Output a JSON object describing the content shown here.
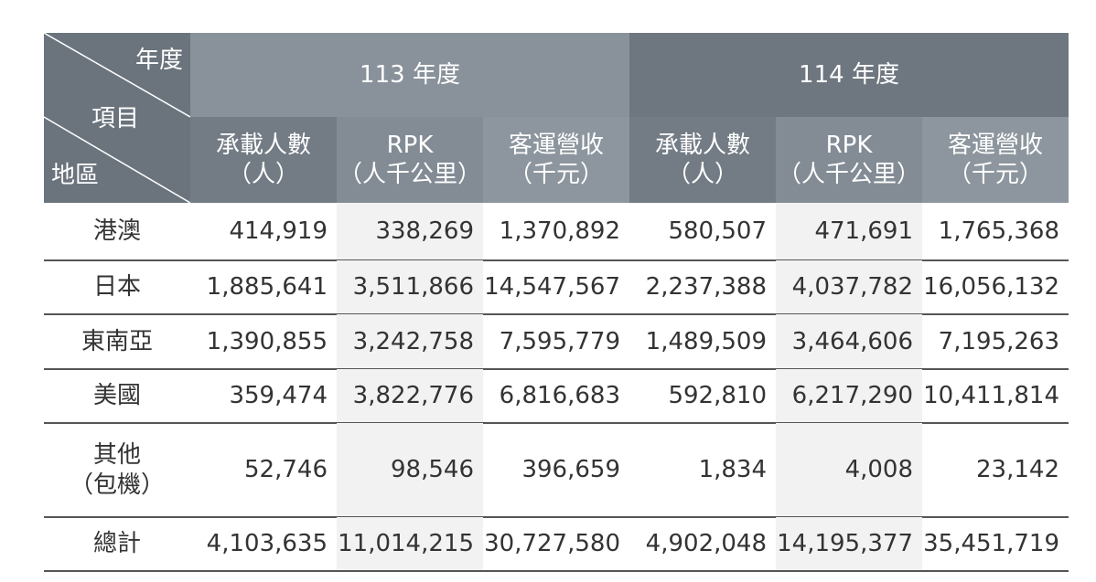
{
  "corner": {
    "top_label": "年度",
    "middle_label": "項目",
    "bottom_label": "地區"
  },
  "columns": [
    {
      "year": "113 年度",
      "metrics": [
        {
          "name": "承載人數",
          "unit": "（人）"
        },
        {
          "name": "RPK",
          "unit": "（人千公里）"
        },
        {
          "name": "客運營收",
          "unit": "（千元）"
        }
      ]
    },
    {
      "year": "114 年度",
      "metrics": [
        {
          "name": "承載人數",
          "unit": "（人）"
        },
        {
          "name": "RPK",
          "unit": "（人千公里）"
        },
        {
          "name": "客運營收",
          "unit": "（千元）"
        }
      ]
    }
  ],
  "rows": [
    {
      "region": [
        "港澳"
      ],
      "values": [
        "414,919",
        "338,269",
        "1,370,892",
        "580,507",
        "471,691",
        "1,765,368"
      ]
    },
    {
      "region": [
        "日本"
      ],
      "values": [
        "1,885,641",
        "3,511,866",
        "14,547,567",
        "2,237,388",
        "4,037,782",
        "16,056,132"
      ]
    },
    {
      "region": [
        "東南亞"
      ],
      "values": [
        "1,390,855",
        "3,242,758",
        "7,595,779",
        "1,489,509",
        "3,464,606",
        "7,195,263"
      ]
    },
    {
      "region": [
        "美國"
      ],
      "values": [
        "359,474",
        "3,822,776",
        "6,816,683",
        "592,810",
        "6,217,290",
        "10,411,814"
      ]
    },
    {
      "region": [
        "其他",
        "（包機）"
      ],
      "values": [
        "52,746",
        "98,546",
        "396,659",
        "1,834",
        "4,008",
        "23,142"
      ]
    },
    {
      "region": [
        "總計"
      ],
      "values": [
        "4,103,635",
        "11,014,215",
        "30,727,580",
        "4,902,048",
        "14,195,377",
        "35,451,719"
      ]
    }
  ]
}
